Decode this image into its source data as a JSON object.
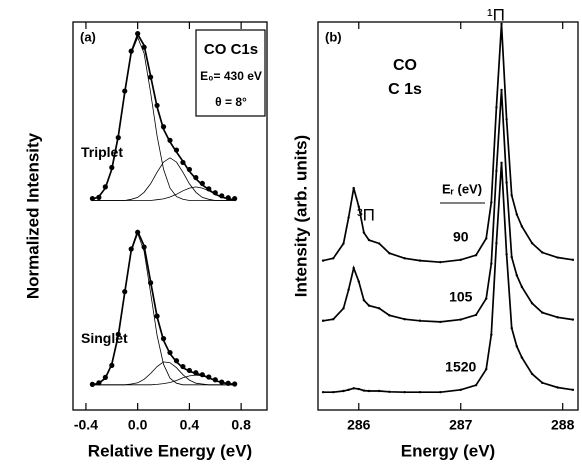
{
  "chart_data": [
    {
      "type": "line",
      "panel": "(a)",
      "x_label": "Relative Energy (eV)",
      "y_label": "Normalized Intensity",
      "annotations": [
        "CO C1s",
        "E₀= 430 eV",
        "θ = 8°"
      ],
      "xlim": [
        -0.5,
        1.0
      ],
      "ylim": [
        0,
        10
      ],
      "xticks": [
        -0.4,
        {
          "value": 0,
          "label": "0.0"
        },
        0.4,
        0.8
      ],
      "x": [
        -0.35,
        -0.3,
        -0.25,
        -0.2,
        -0.15,
        -0.1,
        -0.05,
        0,
        0.05,
        0.1,
        0.15,
        0.2,
        0.25,
        0.3,
        0.35,
        0.4,
        0.45,
        0.5,
        0.55,
        0.6,
        0.65,
        0.7,
        0.75
      ],
      "series": [
        {
          "name": "Triplet",
          "style": "points",
          "color": "#000000",
          "values": [
            5.45,
            5.48,
            5.75,
            6.25,
            7.02,
            8.22,
            9.25,
            9.7,
            9.35,
            8.58,
            7.85,
            7.3,
            6.95,
            6.7,
            6.38,
            6.2,
            5.99,
            5.84,
            5.7,
            5.6,
            5.52,
            5.47,
            5.45
          ]
        },
        {
          "style": "thick",
          "color": "#000000",
          "values": [
            5.43,
            5.5,
            5.72,
            6.21,
            7.06,
            8.18,
            9.22,
            9.68,
            9.4,
            8.61,
            7.81,
            7.24,
            6.91,
            6.65,
            6.41,
            6.15,
            5.96,
            5.8,
            5.68,
            5.56,
            5.49,
            5.44,
            5.42
          ]
        },
        {
          "style": "thin",
          "color": "#000000",
          "values": [
            5.43,
            5.5,
            5.72,
            6.21,
            7.06,
            8.18,
            9.19,
            9.6,
            9.19,
            8.18,
            7.06,
            6.21,
            5.72,
            5.5,
            5.43,
            5.4,
            5.4,
            5.4,
            5.4,
            5.4,
            5.4,
            5.4,
            5.4
          ]
        },
        {
          "style": "thin",
          "color": "#000000",
          "values": [
            5.4,
            5.4,
            5.4,
            5.4,
            5.4,
            5.4,
            5.43,
            5.48,
            5.61,
            5.83,
            6.13,
            6.39,
            6.5,
            6.39,
            6.13,
            5.83,
            5.61,
            5.48,
            5.43,
            5.4,
            5.4,
            5.4,
            5.4
          ]
        },
        {
          "style": "thin",
          "color": "#000000",
          "values": [
            5.4,
            5.4,
            5.4,
            5.4,
            5.4,
            5.4,
            5.4,
            5.4,
            5.4,
            5.4,
            5.42,
            5.44,
            5.49,
            5.56,
            5.65,
            5.72,
            5.75,
            5.72,
            5.65,
            5.56,
            5.49,
            5.44,
            5.42
          ]
        },
        {
          "name": "Singlet",
          "style": "points",
          "color": "#000000",
          "values": [
            0.66,
            0.7,
            0.84,
            1.15,
            1.95,
            3.05,
            4.15,
            4.58,
            4.2,
            3.28,
            2.42,
            1.84,
            1.48,
            1.27,
            1.12,
            1.02,
            0.96,
            0.91,
            0.85,
            0.78,
            0.72,
            0.69,
            0.67
          ]
        },
        {
          "style": "thick",
          "color": "#000000",
          "values": [
            0.65,
            0.69,
            0.82,
            1.18,
            1.92,
            3.02,
            4.11,
            4.6,
            4.23,
            3.31,
            2.4,
            1.8,
            1.45,
            1.24,
            1.09,
            1.0,
            0.94,
            0.9,
            0.83,
            0.76,
            0.71,
            0.68,
            0.66
          ]
        },
        {
          "style": "thin",
          "color": "#000000",
          "values": [
            0.65,
            0.69,
            0.82,
            1.18,
            1.92,
            3.02,
            4.09,
            4.55,
            4.09,
            3.02,
            1.92,
            1.18,
            0.82,
            0.69,
            0.65,
            0.65,
            0.65,
            0.65,
            0.65,
            0.65,
            0.65,
            0.65,
            0.65
          ]
        },
        {
          "style": "thin",
          "color": "#000000",
          "values": [
            0.65,
            0.65,
            0.65,
            0.65,
            0.65,
            0.65,
            0.67,
            0.7,
            0.79,
            0.94,
            1.12,
            1.24,
            1.22,
            1.09,
            0.91,
            0.77,
            0.69,
            0.67,
            0.65,
            0.65,
            0.65,
            0.65,
            0.65
          ]
        },
        {
          "style": "thin",
          "color": "#000000",
          "values": [
            0.65,
            0.65,
            0.65,
            0.65,
            0.65,
            0.65,
            0.65,
            0.65,
            0.65,
            0.65,
            0.66,
            0.68,
            0.71,
            0.76,
            0.83,
            0.88,
            0.9,
            0.88,
            0.83,
            0.76,
            0.71,
            0.68,
            0.66
          ]
        }
      ]
    },
    {
      "type": "line",
      "panel": "(b)",
      "x_label": "Energy (eV)",
      "y_label": "Intensity (arb. units)",
      "annotations": [
        "CO",
        "C 1s",
        "³Π",
        "¹Π",
        "Eᵣ (eV)"
      ],
      "xlim": [
        285.6,
        288.15
      ],
      "ylim": [
        0,
        10
      ],
      "xticks": [
        286,
        287,
        288
      ],
      "x": [
        285.65,
        285.75,
        285.85,
        285.9,
        285.95,
        286,
        286.05,
        286.1,
        286.2,
        286.3,
        286.45,
        286.6,
        286.8,
        287,
        287.15,
        287.25,
        287.3,
        287.35,
        287.4,
        287.45,
        287.5,
        287.55,
        287.6,
        287.7,
        287.8,
        287.95,
        288.1
      ],
      "series": [
        {
          "name": "90",
          "style": "line-points",
          "color": "#000000",
          "values": [
            3.85,
            3.91,
            4.29,
            4.96,
            5.72,
            5.24,
            4.57,
            4.38,
            4.29,
            4.04,
            3.91,
            3.85,
            3.81,
            3.87,
            3.99,
            4.42,
            5.35,
            7.8,
            9.95,
            7.49,
            5.53,
            5.04,
            4.73,
            4.3,
            4.06,
            3.93,
            3.87
          ]
        },
        {
          "name": "105",
          "style": "line-points",
          "color": "#000000",
          "values": [
            2.3,
            2.34,
            2.62,
            3.1,
            3.66,
            3.31,
            2.83,
            2.69,
            2.62,
            2.44,
            2.34,
            2.3,
            2.27,
            2.33,
            2.45,
            2.87,
            3.77,
            6.16,
            8.25,
            5.86,
            3.94,
            3.47,
            3.17,
            2.75,
            2.51,
            2.39,
            2.33
          ]
        },
        {
          "name": "1520",
          "style": "line-points",
          "color": "#000000",
          "values": [
            0.46,
            0.46,
            0.49,
            0.52,
            0.56,
            0.54,
            0.5,
            0.49,
            0.49,
            0.47,
            0.46,
            0.46,
            0.46,
            0.52,
            0.64,
            1.05,
            1.94,
            4.3,
            6.37,
            4.01,
            2.11,
            1.64,
            1.35,
            0.93,
            0.7,
            0.58,
            0.52
          ]
        }
      ]
    }
  ]
}
